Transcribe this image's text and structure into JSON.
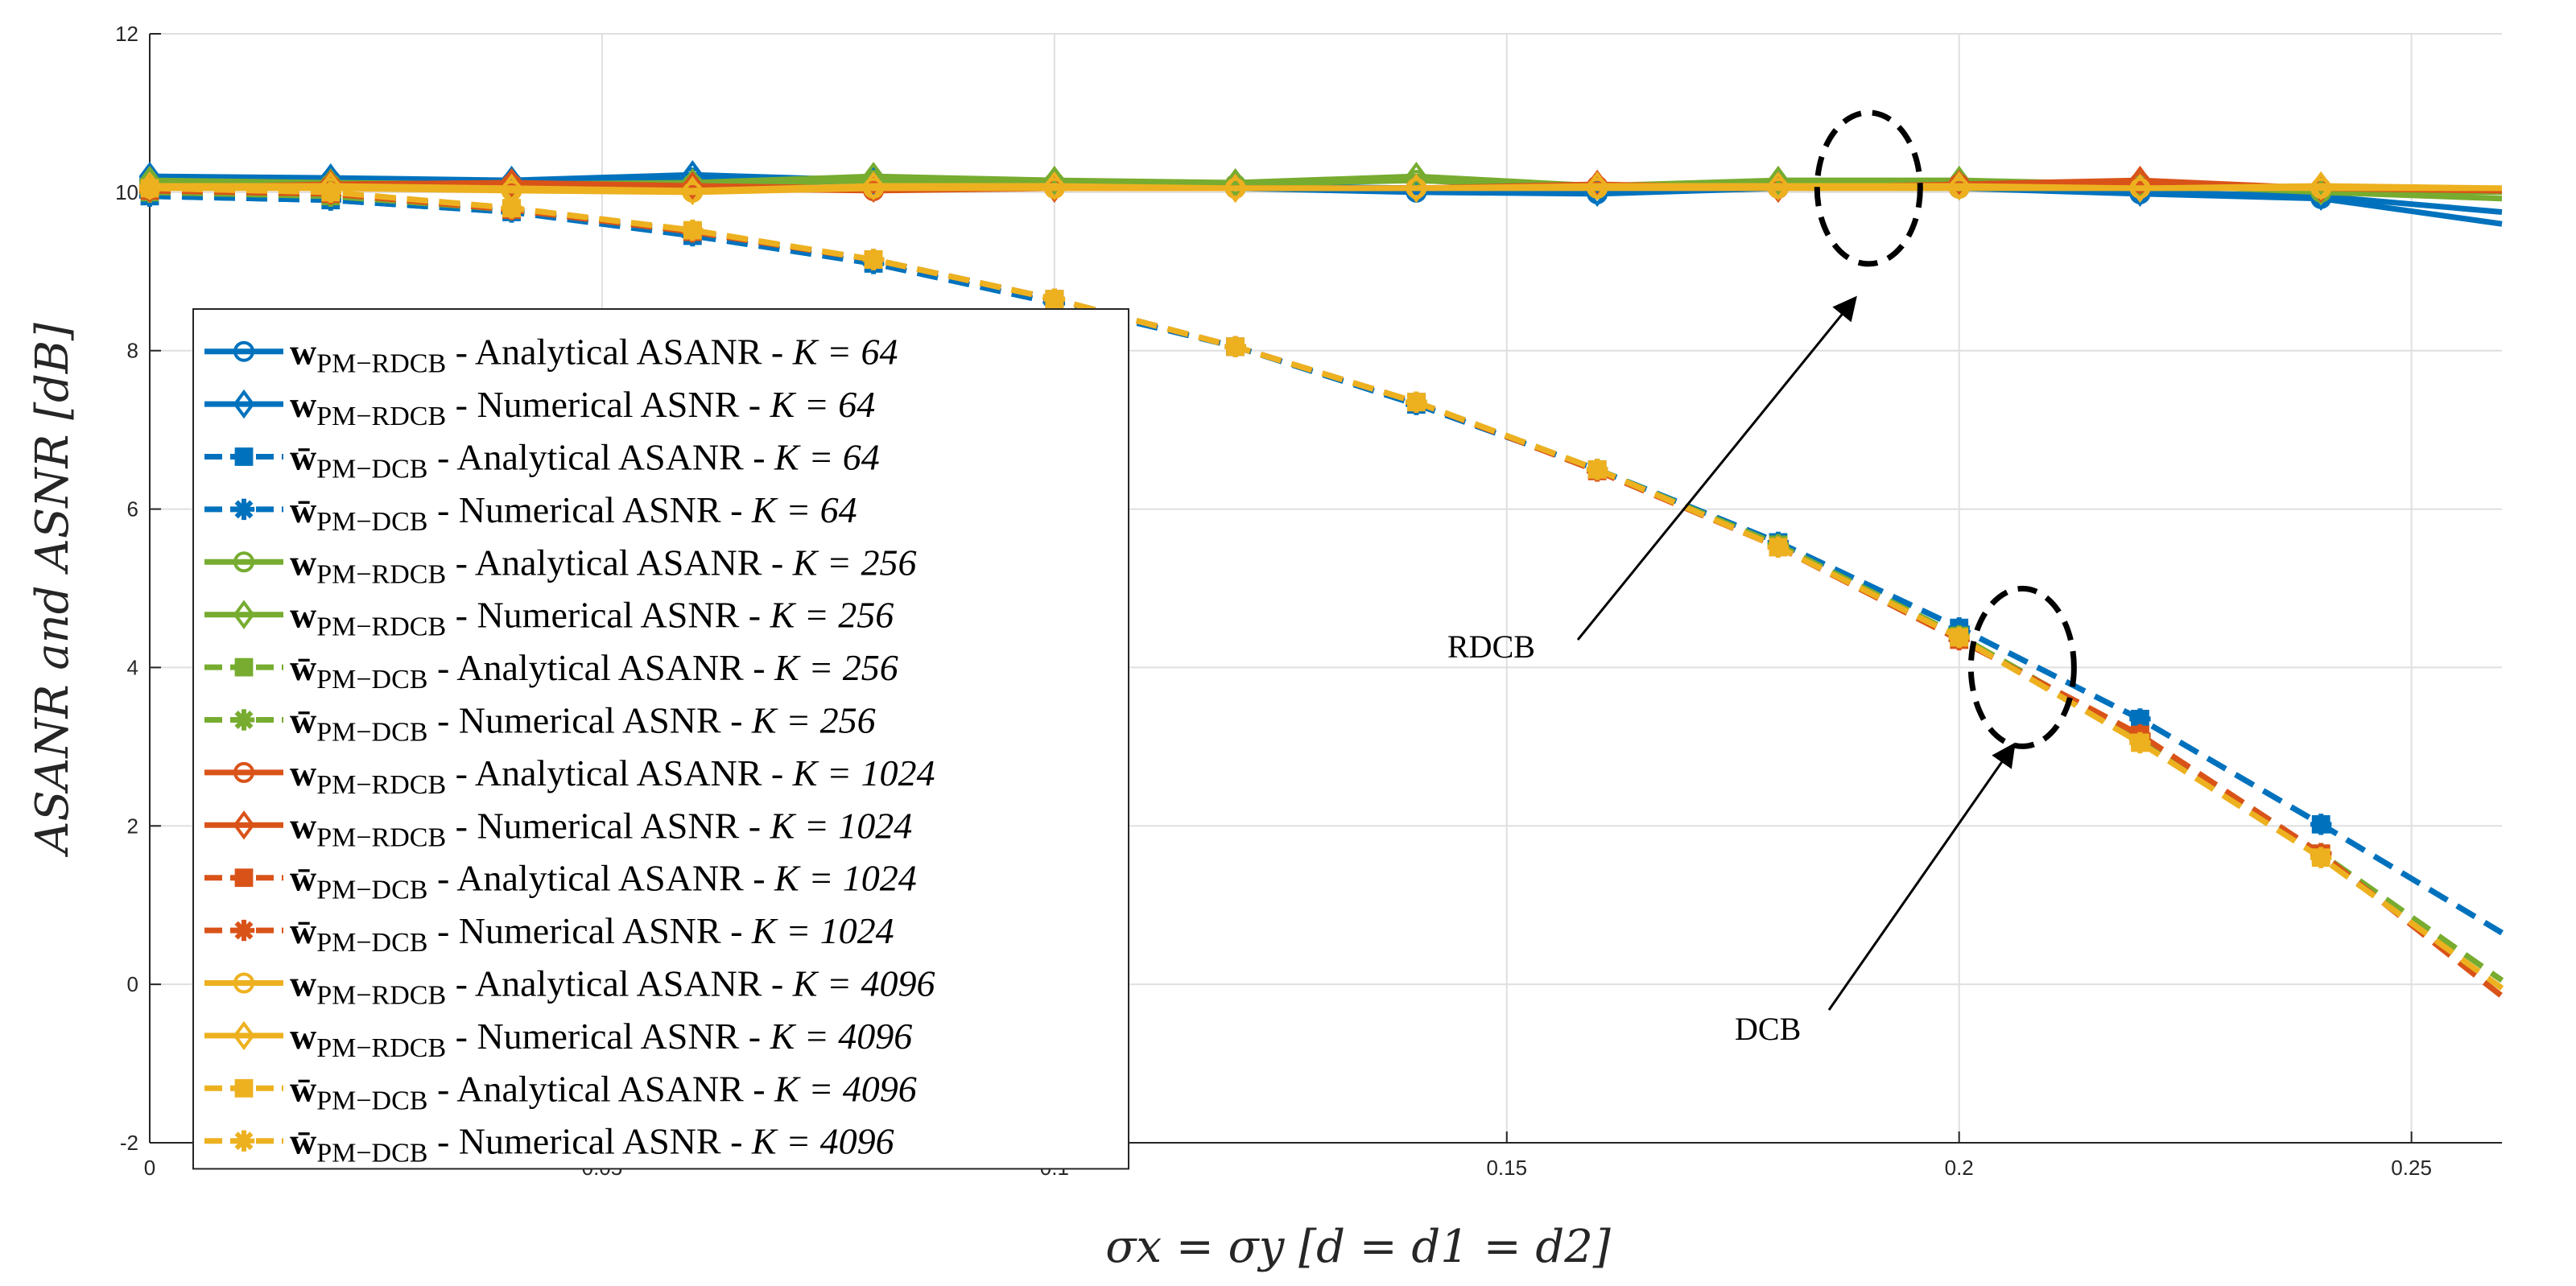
{
  "chart_data": {
    "type": "line",
    "xlabel": "σx = σy [d = d1 = d2]",
    "ylabel": "ASANR and ASNR [dB]",
    "xlim": [
      0,
      0.26
    ],
    "ylim": [
      -2,
      12
    ],
    "grid": true,
    "legend_position": "left",
    "xticks": [
      0,
      0.05,
      0.1,
      0.15,
      0.2,
      0.25
    ],
    "xtick_labels": [
      "0",
      "0.05",
      "0.1",
      "0.15",
      "0.2",
      "0.25"
    ],
    "yticks": [
      -2,
      0,
      2,
      4,
      6,
      8,
      10,
      12
    ],
    "ytick_labels": [
      "-2",
      "0",
      "2",
      "4",
      "6",
      "8",
      "10",
      "12"
    ],
    "x": [
      0,
      0.02,
      0.04,
      0.06,
      0.08,
      0.1,
      0.12,
      0.14,
      0.16,
      0.18,
      0.2,
      0.22,
      0.24,
      0.26
    ],
    "colors": {
      "K64": "#0072BD",
      "K256": "#77AC30",
      "K1024": "#D95319",
      "K4096": "#EDB120"
    },
    "series": [
      {
        "name": "wPM−RDCB - Analytical ASANR - K = 64",
        "color": "#0072BD",
        "dash": false,
        "marker": "circle",
        "values": [
          10.15,
          10.15,
          10.12,
          10.18,
          10.1,
          10.08,
          10.05,
          10.0,
          9.98,
          10.05,
          10.05,
          9.98,
          9.92,
          9.6
        ]
      },
      {
        "name": "wPM−RDCB - Numerical ASNR - K = 64",
        "color": "#0072BD",
        "dash": false,
        "marker": "diamond",
        "values": [
          10.2,
          10.18,
          10.15,
          10.22,
          10.15,
          10.12,
          10.08,
          10.05,
          10.0,
          10.1,
          10.08,
          10.0,
          9.95,
          9.75
        ]
      },
      {
        "name": "w̄PM−DCB - Analytical ASANR - K = 64",
        "color": "#0072BD",
        "dash": true,
        "marker": "square",
        "values": [
          9.95,
          9.9,
          9.75,
          9.45,
          9.1,
          8.6,
          8.05,
          7.32,
          6.5,
          5.58,
          4.5,
          3.35,
          2.02,
          0.65
        ]
      },
      {
        "name": "w̄PM−DCB - Numerical ASNR - K = 64",
        "color": "#0072BD",
        "dash": true,
        "marker": "asterisk",
        "values": [
          9.95,
          9.9,
          9.75,
          9.45,
          9.1,
          8.6,
          8.05,
          7.32,
          6.5,
          5.58,
          4.5,
          3.35,
          2.02,
          0.65
        ]
      },
      {
        "name": "wPM−RDCB - Analytical ASANR - K = 256",
        "color": "#77AC30",
        "dash": false,
        "marker": "circle",
        "values": [
          10.1,
          10.1,
          10.1,
          10.1,
          10.15,
          10.12,
          10.1,
          10.15,
          10.05,
          10.1,
          10.1,
          10.1,
          10.0,
          9.92
        ]
      },
      {
        "name": "wPM−RDCB - Numerical ASNR - K = 256",
        "color": "#77AC30",
        "dash": false,
        "marker": "diamond",
        "values": [
          10.15,
          10.12,
          10.1,
          10.12,
          10.2,
          10.15,
          10.12,
          10.2,
          10.08,
          10.15,
          10.15,
          10.1,
          10.02,
          10.0
        ]
      },
      {
        "name": "w̄PM−DCB - Analytical ASANR - K = 256",
        "color": "#77AC30",
        "dash": true,
        "marker": "square",
        "values": [
          10.0,
          9.95,
          9.78,
          9.5,
          9.15,
          8.65,
          8.05,
          7.35,
          6.5,
          5.55,
          4.4,
          3.1,
          1.65,
          0.05
        ]
      },
      {
        "name": "w̄PM−DCB - Numerical ASNR - K = 256",
        "color": "#77AC30",
        "dash": true,
        "marker": "asterisk",
        "values": [
          10.0,
          9.95,
          9.78,
          9.5,
          9.15,
          8.65,
          8.05,
          7.35,
          6.5,
          5.55,
          4.4,
          3.1,
          1.65,
          0.05
        ]
      },
      {
        "name": "wPM−RDCB - Analytical ASANR - K = 1024",
        "color": "#D95319",
        "dash": false,
        "marker": "circle",
        "values": [
          10.05,
          10.08,
          10.1,
          10.05,
          10.02,
          10.05,
          10.05,
          10.05,
          10.08,
          10.05,
          10.1,
          10.12,
          10.05,
          10.02
        ]
      },
      {
        "name": "wPM−RDCB - Numerical ASNR - K = 1024",
        "color": "#D95319",
        "dash": false,
        "marker": "diamond",
        "values": [
          10.05,
          10.1,
          10.12,
          10.08,
          10.05,
          10.05,
          10.05,
          10.05,
          10.1,
          10.05,
          10.1,
          10.15,
          10.05,
          10.02
        ]
      },
      {
        "name": "w̄PM−DCB - Analytical ASANR - K = 1024",
        "color": "#D95319",
        "dash": true,
        "marker": "square",
        "values": [
          10.02,
          9.98,
          9.78,
          9.5,
          9.15,
          8.65,
          8.05,
          7.35,
          6.48,
          5.52,
          4.35,
          3.15,
          1.65,
          -0.15
        ]
      },
      {
        "name": "w̄PM−DCB - Numerical ASNR - K = 1024",
        "color": "#D95319",
        "dash": true,
        "marker": "asterisk",
        "values": [
          10.02,
          9.98,
          9.78,
          9.5,
          9.15,
          8.65,
          8.05,
          7.35,
          6.48,
          5.52,
          4.35,
          3.15,
          1.65,
          -0.15
        ]
      },
      {
        "name": "wPM−RDCB - Analytical ASANR - K = 4096",
        "color": "#EDB120",
        "dash": false,
        "marker": "circle",
        "values": [
          10.05,
          10.05,
          10.02,
          10.0,
          10.05,
          10.05,
          10.05,
          10.05,
          10.05,
          10.05,
          10.05,
          10.05,
          10.05,
          10.05
        ]
      },
      {
        "name": "wPM−RDCB - Numerical ASNR - K = 4096",
        "color": "#EDB120",
        "dash": false,
        "marker": "diamond",
        "values": [
          10.08,
          10.08,
          10.05,
          10.02,
          10.08,
          10.08,
          10.05,
          10.05,
          10.08,
          10.08,
          10.08,
          10.05,
          10.08,
          10.05
        ]
      },
      {
        "name": "w̄PM−DCB - Analytical ASANR - K = 4096",
        "color": "#EDB120",
        "dash": true,
        "marker": "square",
        "values": [
          10.05,
          10.0,
          9.8,
          9.52,
          9.15,
          8.65,
          8.05,
          7.35,
          6.5,
          5.52,
          4.38,
          3.05,
          1.6,
          -0.05
        ]
      },
      {
        "name": "w̄PM−DCB - Numerical ASNR - K = 4096",
        "color": "#EDB120",
        "dash": true,
        "marker": "asterisk",
        "values": [
          10.05,
          10.0,
          9.8,
          9.52,
          9.15,
          8.65,
          8.05,
          7.35,
          6.5,
          5.52,
          4.38,
          3.05,
          1.6,
          -0.05
        ]
      }
    ],
    "legend": [
      {
        "vec": "w",
        "bar": false,
        "sub": "PM−RDCB",
        "text": " - Analytical ASANR - ",
        "kval": "64",
        "color": "#0072BD",
        "dash": false,
        "marker": "circle"
      },
      {
        "vec": "w",
        "bar": false,
        "sub": "PM−RDCB",
        "text": " - Numerical ASNR - ",
        "kval": "64",
        "color": "#0072BD",
        "dash": false,
        "marker": "diamond"
      },
      {
        "vec": "w",
        "bar": true,
        "sub": "PM−DCB",
        "text": " - Analytical ASANR - ",
        "kval": "64",
        "color": "#0072BD",
        "dash": true,
        "marker": "square"
      },
      {
        "vec": "w",
        "bar": true,
        "sub": "PM−DCB",
        "text": " - Numerical ASNR - ",
        "kval": "64",
        "color": "#0072BD",
        "dash": true,
        "marker": "asterisk"
      },
      {
        "vec": "w",
        "bar": false,
        "sub": "PM−RDCB",
        "text": " - Analytical ASANR - ",
        "kval": "256",
        "color": "#77AC30",
        "dash": false,
        "marker": "circle"
      },
      {
        "vec": "w",
        "bar": false,
        "sub": "PM−RDCB",
        "text": " - Numerical ASNR - ",
        "kval": "256",
        "color": "#77AC30",
        "dash": false,
        "marker": "diamond"
      },
      {
        "vec": "w",
        "bar": true,
        "sub": "PM−DCB",
        "text": " - Analytical ASANR - ",
        "kval": "256",
        "color": "#77AC30",
        "dash": true,
        "marker": "square"
      },
      {
        "vec": "w",
        "bar": true,
        "sub": "PM−DCB",
        "text": " - Numerical ASNR - ",
        "kval": "256",
        "color": "#77AC30",
        "dash": true,
        "marker": "asterisk"
      },
      {
        "vec": "w",
        "bar": false,
        "sub": "PM−RDCB",
        "text": " - Analytical ASANR - ",
        "kval": "1024",
        "color": "#D95319",
        "dash": false,
        "marker": "circle"
      },
      {
        "vec": "w",
        "bar": false,
        "sub": "PM−RDCB",
        "text": " - Numerical ASNR - ",
        "kval": "1024",
        "color": "#D95319",
        "dash": false,
        "marker": "diamond"
      },
      {
        "vec": "w",
        "bar": true,
        "sub": "PM−DCB",
        "text": " - Analytical ASANR - ",
        "kval": "1024",
        "color": "#D95319",
        "dash": true,
        "marker": "square"
      },
      {
        "vec": "w",
        "bar": true,
        "sub": "PM−DCB",
        "text": " - Numerical ASNR - ",
        "kval": "1024",
        "color": "#D95319",
        "dash": true,
        "marker": "asterisk"
      },
      {
        "vec": "w",
        "bar": false,
        "sub": "PM−RDCB",
        "text": " - Analytical ASANR - ",
        "kval": "4096",
        "color": "#EDB120",
        "dash": false,
        "marker": "circle"
      },
      {
        "vec": "w",
        "bar": false,
        "sub": "PM−RDCB",
        "text": " - Numerical ASNR - ",
        "kval": "4096",
        "color": "#EDB120",
        "dash": false,
        "marker": "diamond"
      },
      {
        "vec": "w",
        "bar": true,
        "sub": "PM−DCB",
        "text": " - Analytical ASANR - ",
        "kval": "4096",
        "color": "#EDB120",
        "dash": true,
        "marker": "square"
      },
      {
        "vec": "w",
        "bar": true,
        "sub": "PM−DCB",
        "text": " - Numerical ASNR - ",
        "kval": "4096",
        "color": "#EDB120",
        "dash": true,
        "marker": "asterisk"
      }
    ],
    "k_prefix": "K = ",
    "annotations": [
      {
        "text": "RDCB",
        "target_x": 0.19,
        "target_y": 10.05
      },
      {
        "text": "DCB",
        "target_x": 0.207,
        "target_y": 4.0
      }
    ]
  }
}
